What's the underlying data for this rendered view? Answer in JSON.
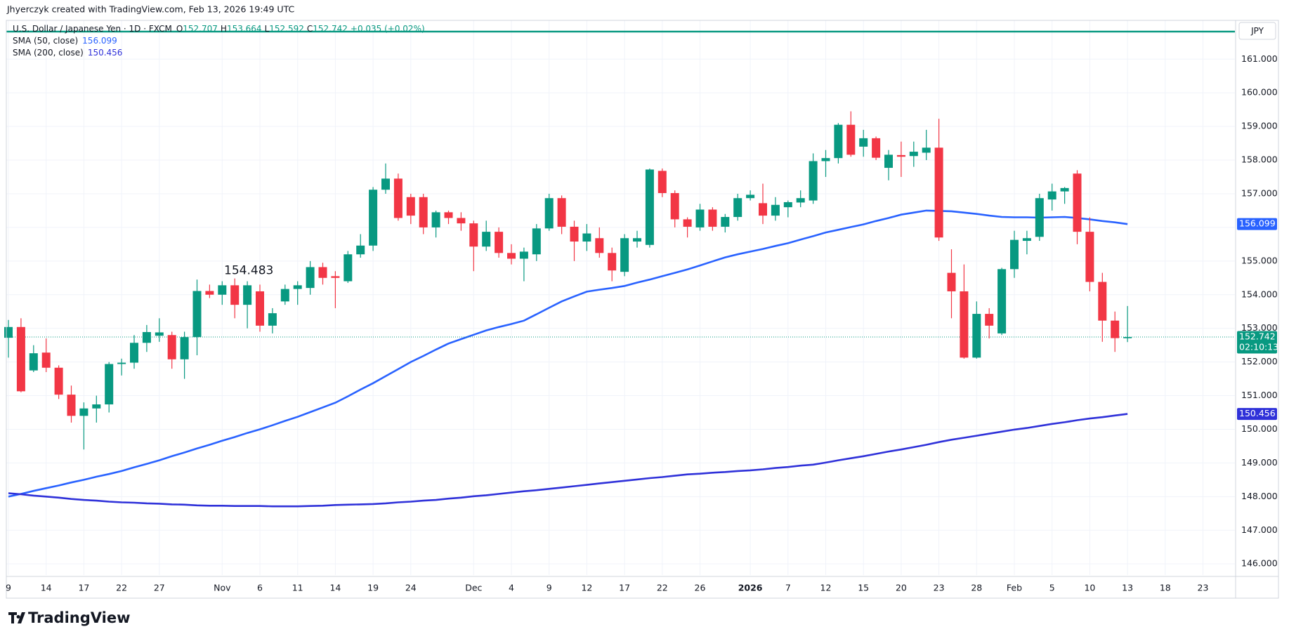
{
  "header": {
    "credit": "Jhyerczyk created with TradingView.com, Feb 13, 2026 19:49 UTC",
    "brand": "TradingView"
  },
  "legend": {
    "symbol": "U.S. Dollar / Japanese Yen · 1D · FXCM",
    "ohlc_labels": [
      "O",
      "H",
      "L",
      "C"
    ],
    "change": "+0.035 (+0.02%)",
    "currency": "JPY",
    "countdown": "02:10:13"
  },
  "chart_data": {
    "type": "candlestick",
    "up_color": "#089981",
    "down_color": "#f23645",
    "grid": true,
    "annotation": {
      "index": 18,
      "field": "high"
    },
    "horizontal_line": 161.82,
    "ylim": [
      145.67,
      161.84
    ],
    "yticks": [
      {
        "value": 146,
        "label": "146.000"
      },
      {
        "value": 147,
        "label": "147.000"
      },
      {
        "value": 148,
        "label": "148.000"
      },
      {
        "value": 149,
        "label": "149.000"
      },
      {
        "value": 150,
        "label": "150.000"
      },
      {
        "value": 151,
        "label": "151.000"
      },
      {
        "value": 152,
        "label": "152.000"
      },
      {
        "value": 153,
        "label": "153.000"
      },
      {
        "value": 154,
        "label": "154.000"
      },
      {
        "value": 155,
        "label": "155.000"
      },
      {
        "value": 156,
        "label": "156.000"
      },
      {
        "value": 157,
        "label": "157.000"
      },
      {
        "value": 158,
        "label": "158.000"
      },
      {
        "value": 159,
        "label": "159.000"
      },
      {
        "value": 160,
        "label": "160.000"
      },
      {
        "value": 161,
        "label": "161.000"
      }
    ],
    "categories": [
      "9",
      null,
      null,
      "14",
      null,
      null,
      "17",
      null,
      null,
      "22",
      null,
      null,
      "27",
      null,
      null,
      null,
      null,
      "Nov",
      null,
      null,
      "6",
      null,
      null,
      "11",
      null,
      null,
      "14",
      null,
      null,
      "19",
      null,
      null,
      "24",
      null,
      null,
      null,
      null,
      "Dec",
      null,
      null,
      "4",
      null,
      null,
      "9",
      null,
      null,
      "12",
      null,
      null,
      "17",
      null,
      null,
      "22",
      null,
      null,
      "26",
      null,
      null,
      null,
      "2026",
      null,
      null,
      "7",
      null,
      null,
      "12",
      null,
      null,
      "15",
      null,
      null,
      "20",
      null,
      null,
      "23",
      null,
      null,
      "28",
      null,
      null,
      "Feb",
      null,
      null,
      "5",
      null,
      null,
      "10",
      null,
      null,
      "13"
    ],
    "future_categories": [
      "18",
      "23"
    ],
    "open": [
      152.72,
      153.04,
      151.75,
      152.28,
      151.83,
      151.03,
      150.4,
      150.62,
      150.74,
      151.94,
      151.98,
      152.57,
      152.78,
      152.8,
      152.08,
      152.74,
      154.11,
      154.0,
      154.28,
      153.7,
      154.1,
      153.08,
      153.8,
      154.17,
      154.2,
      154.82,
      154.55,
      154.4,
      155.2,
      155.46,
      157.12,
      157.45,
      156.9,
      156.9,
      156.0,
      156.45,
      156.28,
      156.12,
      155.43,
      155.87,
      155.24,
      155.07,
      155.2,
      155.97,
      156.87,
      156.02,
      155.58,
      155.68,
      155.24,
      154.68,
      155.58,
      155.48,
      157.68,
      157.02,
      156.24,
      156.0,
      156.53,
      156.02,
      156.31,
      156.87,
      156.72,
      156.35,
      156.6,
      156.74,
      156.8,
      157.97,
      158.06,
      159.05,
      158.4,
      158.65,
      157.77,
      158.15,
      158.12,
      158.22,
      158.37,
      154.65,
      154.1,
      152.13,
      153.43,
      152.85,
      154.76,
      155.6,
      155.72,
      156.83,
      157.07,
      157.6,
      155.87,
      154.38,
      153.23,
      152.707
    ],
    "high": [
      153.25,
      153.3,
      152.5,
      152.7,
      151.9,
      151.3,
      150.8,
      151.0,
      152.0,
      152.1,
      152.8,
      153.1,
      153.3,
      152.9,
      152.9,
      154.45,
      154.3,
      154.4,
      154.483,
      154.4,
      154.3,
      153.6,
      154.3,
      154.4,
      155.0,
      154.95,
      154.7,
      155.3,
      155.8,
      157.2,
      157.9,
      157.6,
      157.0,
      157.0,
      156.5,
      156.5,
      156.45,
      156.2,
      156.2,
      156.0,
      155.5,
      155.4,
      156.1,
      157.0,
      156.95,
      156.2,
      156.1,
      156.0,
      155.4,
      155.8,
      155.9,
      157.75,
      157.75,
      157.1,
      156.3,
      156.7,
      156.6,
      156.4,
      157.0,
      157.1,
      157.3,
      156.9,
      156.8,
      157.1,
      158.2,
      158.3,
      159.1,
      159.45,
      158.9,
      158.7,
      158.3,
      158.55,
      158.55,
      158.9,
      159.23,
      155.35,
      154.9,
      153.8,
      153.6,
      154.8,
      155.9,
      155.9,
      157.0,
      157.3,
      157.2,
      157.7,
      156.3,
      154.65,
      153.5,
      153.664
    ],
    "low": [
      152.13,
      151.1,
      151.7,
      151.7,
      150.9,
      150.2,
      149.4,
      150.2,
      150.5,
      151.6,
      151.8,
      152.3,
      152.6,
      151.8,
      151.5,
      152.2,
      153.9,
      153.7,
      153.3,
      153.0,
      152.9,
      152.85,
      153.7,
      153.7,
      154.0,
      154.3,
      153.6,
      154.35,
      155.1,
      155.3,
      157.0,
      156.2,
      156.1,
      155.8,
      155.7,
      156.1,
      155.9,
      154.7,
      155.3,
      155.1,
      154.9,
      154.4,
      155.0,
      155.9,
      155.8,
      155.0,
      155.3,
      155.1,
      154.4,
      154.55,
      155.4,
      155.4,
      156.9,
      156.0,
      155.7,
      155.9,
      155.9,
      155.85,
      156.2,
      156.8,
      156.1,
      156.2,
      156.3,
      156.6,
      156.7,
      157.5,
      157.9,
      158.1,
      158.1,
      158.0,
      157.4,
      157.5,
      157.8,
      158.0,
      155.6,
      153.3,
      152.1,
      152.1,
      152.7,
      152.8,
      154.5,
      155.2,
      155.6,
      156.5,
      156.7,
      155.5,
      154.1,
      152.6,
      152.3,
      152.592
    ],
    "close": [
      153.04,
      151.13,
      152.26,
      151.83,
      151.03,
      150.4,
      150.62,
      150.74,
      151.94,
      151.98,
      152.57,
      152.89,
      152.88,
      152.08,
      152.74,
      154.11,
      154.0,
      154.28,
      153.7,
      154.28,
      153.08,
      153.45,
      154.17,
      154.28,
      154.82,
      154.5,
      154.5,
      155.2,
      155.46,
      157.12,
      157.45,
      156.28,
      156.35,
      156.0,
      156.45,
      156.28,
      156.12,
      155.43,
      155.87,
      155.24,
      155.07,
      155.28,
      155.97,
      156.87,
      156.02,
      155.58,
      155.82,
      155.24,
      154.72,
      155.68,
      155.68,
      157.72,
      157.02,
      156.24,
      156.02,
      156.53,
      156.02,
      156.31,
      156.87,
      156.97,
      156.35,
      156.67,
      156.75,
      156.87,
      157.97,
      158.06,
      159.05,
      158.16,
      158.65,
      158.07,
      158.16,
      158.1,
      158.25,
      158.37,
      155.7,
      154.1,
      152.13,
      153.43,
      153.08,
      154.76,
      155.63,
      155.68,
      156.87,
      157.07,
      157.17,
      155.87,
      154.38,
      153.23,
      152.71,
      152.742
    ],
    "series": [
      {
        "name": "SMA (50, close)",
        "color": "#2962ff",
        "values": [
          148.0,
          148.08,
          148.17,
          148.25,
          148.33,
          148.42,
          148.5,
          148.59,
          148.67,
          148.76,
          148.87,
          148.97,
          149.08,
          149.2,
          149.31,
          149.43,
          149.54,
          149.66,
          149.77,
          149.89,
          150.0,
          150.12,
          150.25,
          150.37,
          150.51,
          150.65,
          150.79,
          150.98,
          151.18,
          151.37,
          151.58,
          151.79,
          152.0,
          152.18,
          152.37,
          152.55,
          152.68,
          152.81,
          152.94,
          153.04,
          153.13,
          153.23,
          153.42,
          153.61,
          153.8,
          153.95,
          154.09,
          154.15,
          154.2,
          154.26,
          154.36,
          154.45,
          154.55,
          154.65,
          154.75,
          154.87,
          154.99,
          155.11,
          155.2,
          155.28,
          155.36,
          155.45,
          155.53,
          155.64,
          155.74,
          155.85,
          155.93,
          156.01,
          156.09,
          156.19,
          156.28,
          156.38,
          156.44,
          156.5,
          156.49,
          156.48,
          156.44,
          156.4,
          156.35,
          156.31,
          156.3,
          156.3,
          156.29,
          156.3,
          156.31,
          156.28,
          156.24,
          156.19,
          156.15,
          156.099
        ]
      },
      {
        "name": "SMA (200, close)",
        "color": "#2f31d9",
        "values": [
          148.1,
          148.07,
          148.03,
          148.0,
          147.97,
          147.93,
          147.9,
          147.88,
          147.85,
          147.83,
          147.82,
          147.8,
          147.79,
          147.77,
          147.76,
          147.74,
          147.73,
          147.73,
          147.72,
          147.72,
          147.72,
          147.71,
          147.71,
          147.71,
          147.72,
          147.73,
          147.75,
          147.76,
          147.77,
          147.78,
          147.8,
          147.83,
          147.85,
          147.88,
          147.9,
          147.94,
          147.97,
          148.01,
          148.04,
          148.08,
          148.12,
          148.16,
          148.19,
          148.23,
          148.27,
          148.31,
          148.35,
          148.39,
          148.43,
          148.47,
          148.51,
          148.55,
          148.58,
          148.62,
          148.66,
          148.68,
          148.71,
          148.73,
          148.76,
          148.78,
          148.81,
          148.85,
          148.88,
          148.92,
          148.95,
          149.01,
          149.08,
          149.14,
          149.2,
          149.27,
          149.34,
          149.4,
          149.47,
          149.54,
          149.62,
          149.69,
          149.75,
          149.81,
          149.87,
          149.93,
          149.99,
          150.04,
          150.1,
          150.16,
          150.21,
          150.27,
          150.32,
          150.36,
          150.41,
          150.456
        ]
      }
    ]
  }
}
